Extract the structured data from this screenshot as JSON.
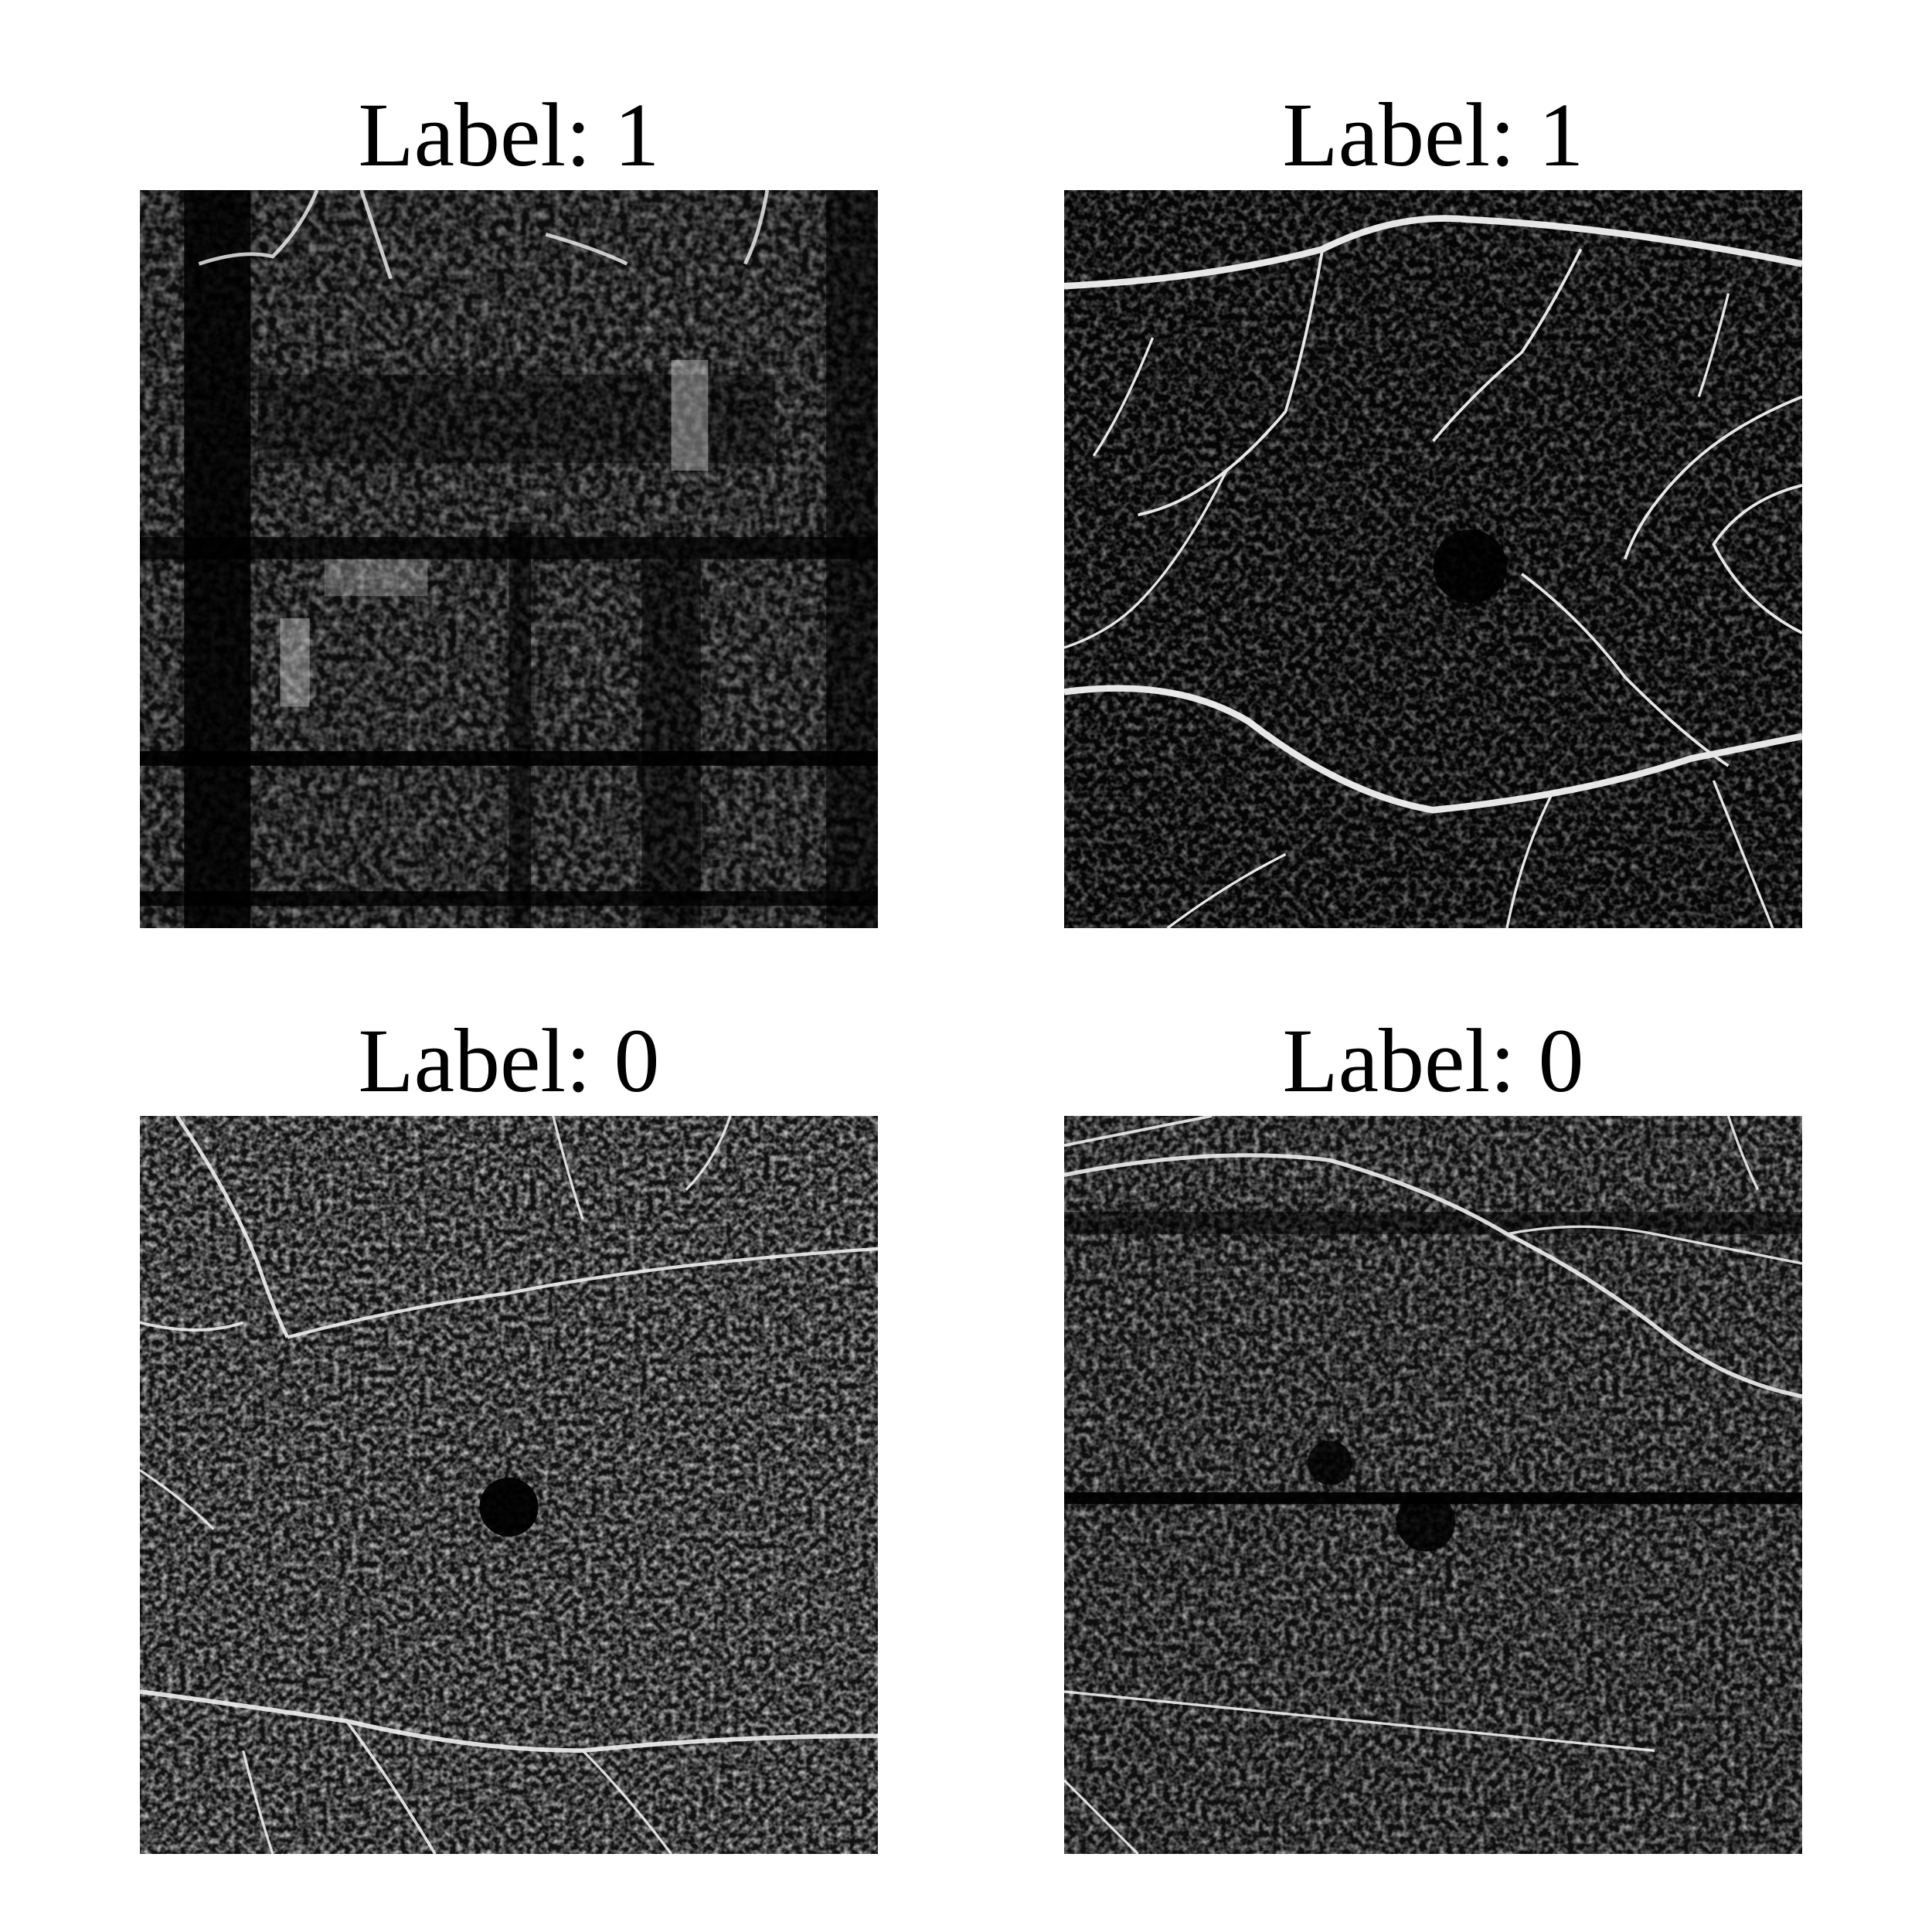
{
  "panels": [
    {
      "title": "Label: 1"
    },
    {
      "title": "Label: 1"
    },
    {
      "title": "Label: 0"
    },
    {
      "title": "Label: 0"
    }
  ]
}
